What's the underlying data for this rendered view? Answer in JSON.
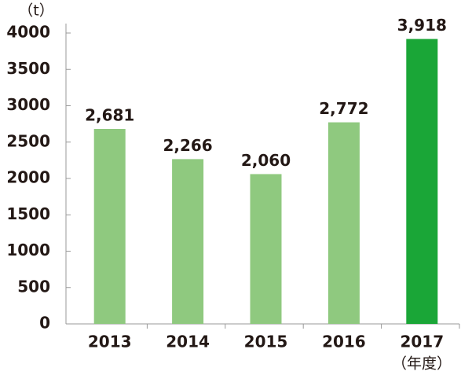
{
  "chart_data": {
    "type": "bar",
    "y_unit": "（t）",
    "x_unit": "（年度）",
    "categories": [
      "2013",
      "2014",
      "2015",
      "2016",
      "2017"
    ],
    "values": [
      2681,
      2266,
      2060,
      2772,
      3918
    ],
    "value_labels": [
      "2,681",
      "2,266",
      "2,060",
      "2,772",
      "3,918"
    ],
    "colors": [
      "#8fc97f",
      "#8fc97f",
      "#8fc97f",
      "#8fc97f",
      "#1aa637"
    ],
    "ylim": [
      0,
      4000
    ],
    "yticks": [
      0,
      500,
      1000,
      1500,
      2000,
      2500,
      3000,
      3500,
      4000
    ]
  }
}
